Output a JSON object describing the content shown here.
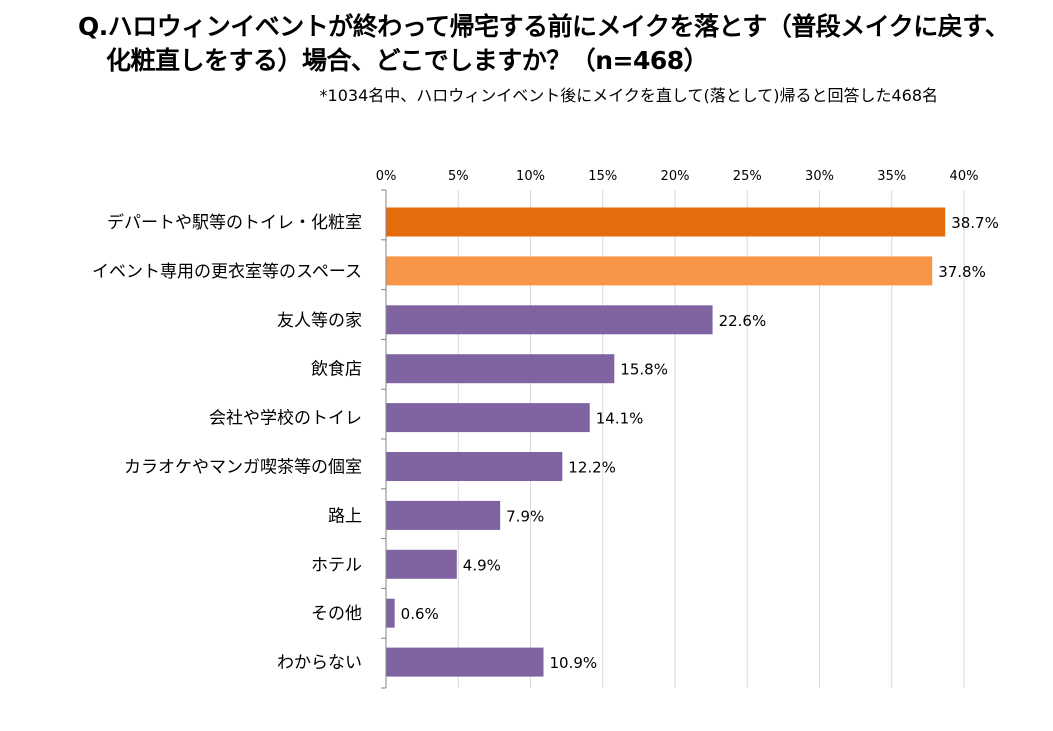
{
  "chart_data": {
    "type": "bar",
    "orientation": "horizontal",
    "title_lines": [
      "Q.ハロウィンイベントが終わって帰宅する前にメイクを落とす（普段メイクに戻す、",
      "化粧直しをする）場合、どこでしますか？（n=468）"
    ],
    "subtitle": "*1034名中、ハロウィンイベント後にメイクを直して(落として)帰ると回答した468名",
    "categories": [
      "デパートや駅等のトイレ・化粧室",
      "イベント専用の更衣室等のスペース",
      "友人等の家",
      "飲食店",
      "会社や学校のトイレ",
      "カラオケやマンガ喫茶等の個室",
      "路上",
      "ホテル",
      "その他",
      "わからない"
    ],
    "values": [
      38.7,
      37.8,
      22.6,
      15.8,
      14.1,
      12.2,
      7.9,
      4.9,
      0.6,
      10.9
    ],
    "data_labels": [
      "38.7%",
      "37.8%",
      "22.6%",
      "15.8%",
      "14.1%",
      "12.2%",
      "7.9%",
      "4.9%",
      "0.6%",
      "10.9%"
    ],
    "bar_colors": [
      "#E46C0A",
      "#F79646",
      "#8064A2",
      "#8064A2",
      "#8064A2",
      "#8064A2",
      "#8064A2",
      "#8064A2",
      "#8064A2",
      "#8064A2"
    ],
    "xlim": [
      0,
      40
    ],
    "ticks": [
      0,
      5,
      10,
      15,
      20,
      25,
      30,
      35,
      40
    ],
    "tick_labels": [
      "0%",
      "5%",
      "10%",
      "15%",
      "20%",
      "25%",
      "30%",
      "35%",
      "40%"
    ],
    "axis_position": "top",
    "grid": true,
    "legend": "none"
  }
}
